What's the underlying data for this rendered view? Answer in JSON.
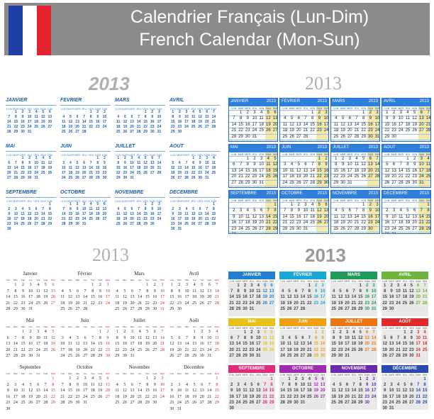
{
  "header": {
    "title_fr": "Calendrier Français (Lun-Dim)",
    "title_en": "French Calendar (Mon-Sun)",
    "flag_colors": [
      "#1f3fa6",
      "#ffffff",
      "#e2232f"
    ],
    "background": "#8b8b8b"
  },
  "year": "2013",
  "colors": {
    "blue_italic": "#1a5fb0",
    "blue_box": "#2f7fdc",
    "weekend_highlight": "#f4e9a8",
    "sunday_red": "#d62020",
    "month_bars": [
      "#1f7fd0",
      "#19a7d8",
      "#1f9a5a",
      "#6fb43a",
      "#e8c21a",
      "#f0a010",
      "#ec7512",
      "#e02a2a",
      "#e02a7a",
      "#a02ab0",
      "#6a2ab0",
      "#2a4ab0"
    ]
  },
  "day_headers": [
    "LUN",
    "MAR",
    "MER",
    "JEU",
    "VEN",
    "SAM",
    "DIM"
  ],
  "day_headers_serif": [
    "Lun",
    "Mar",
    "Mer",
    "Jeu",
    "Ven",
    "Sam",
    "Dim"
  ],
  "months_upper": [
    "JANVIER",
    "FÉVRIER",
    "MARS",
    "AVRIL",
    "MAI",
    "JUIN",
    "JUILLET",
    "AOÛT",
    "SEPTEMBRE",
    "OCTOBRE",
    "NOVEMBRE",
    "DÉCEMBRE"
  ],
  "months_title": [
    "Janvier",
    "Février",
    "Mars",
    "Avril",
    "Mai",
    "Juin",
    "Juillet",
    "Août",
    "Septembre",
    "Octobre",
    "Novembre",
    "Décembre"
  ],
  "month_offsets": [
    1,
    4,
    4,
    0,
    2,
    5,
    0,
    3,
    6,
    1,
    4,
    6
  ],
  "month_lengths": [
    31,
    28,
    31,
    30,
    31,
    30,
    31,
    31,
    30,
    31,
    30,
    31
  ]
}
